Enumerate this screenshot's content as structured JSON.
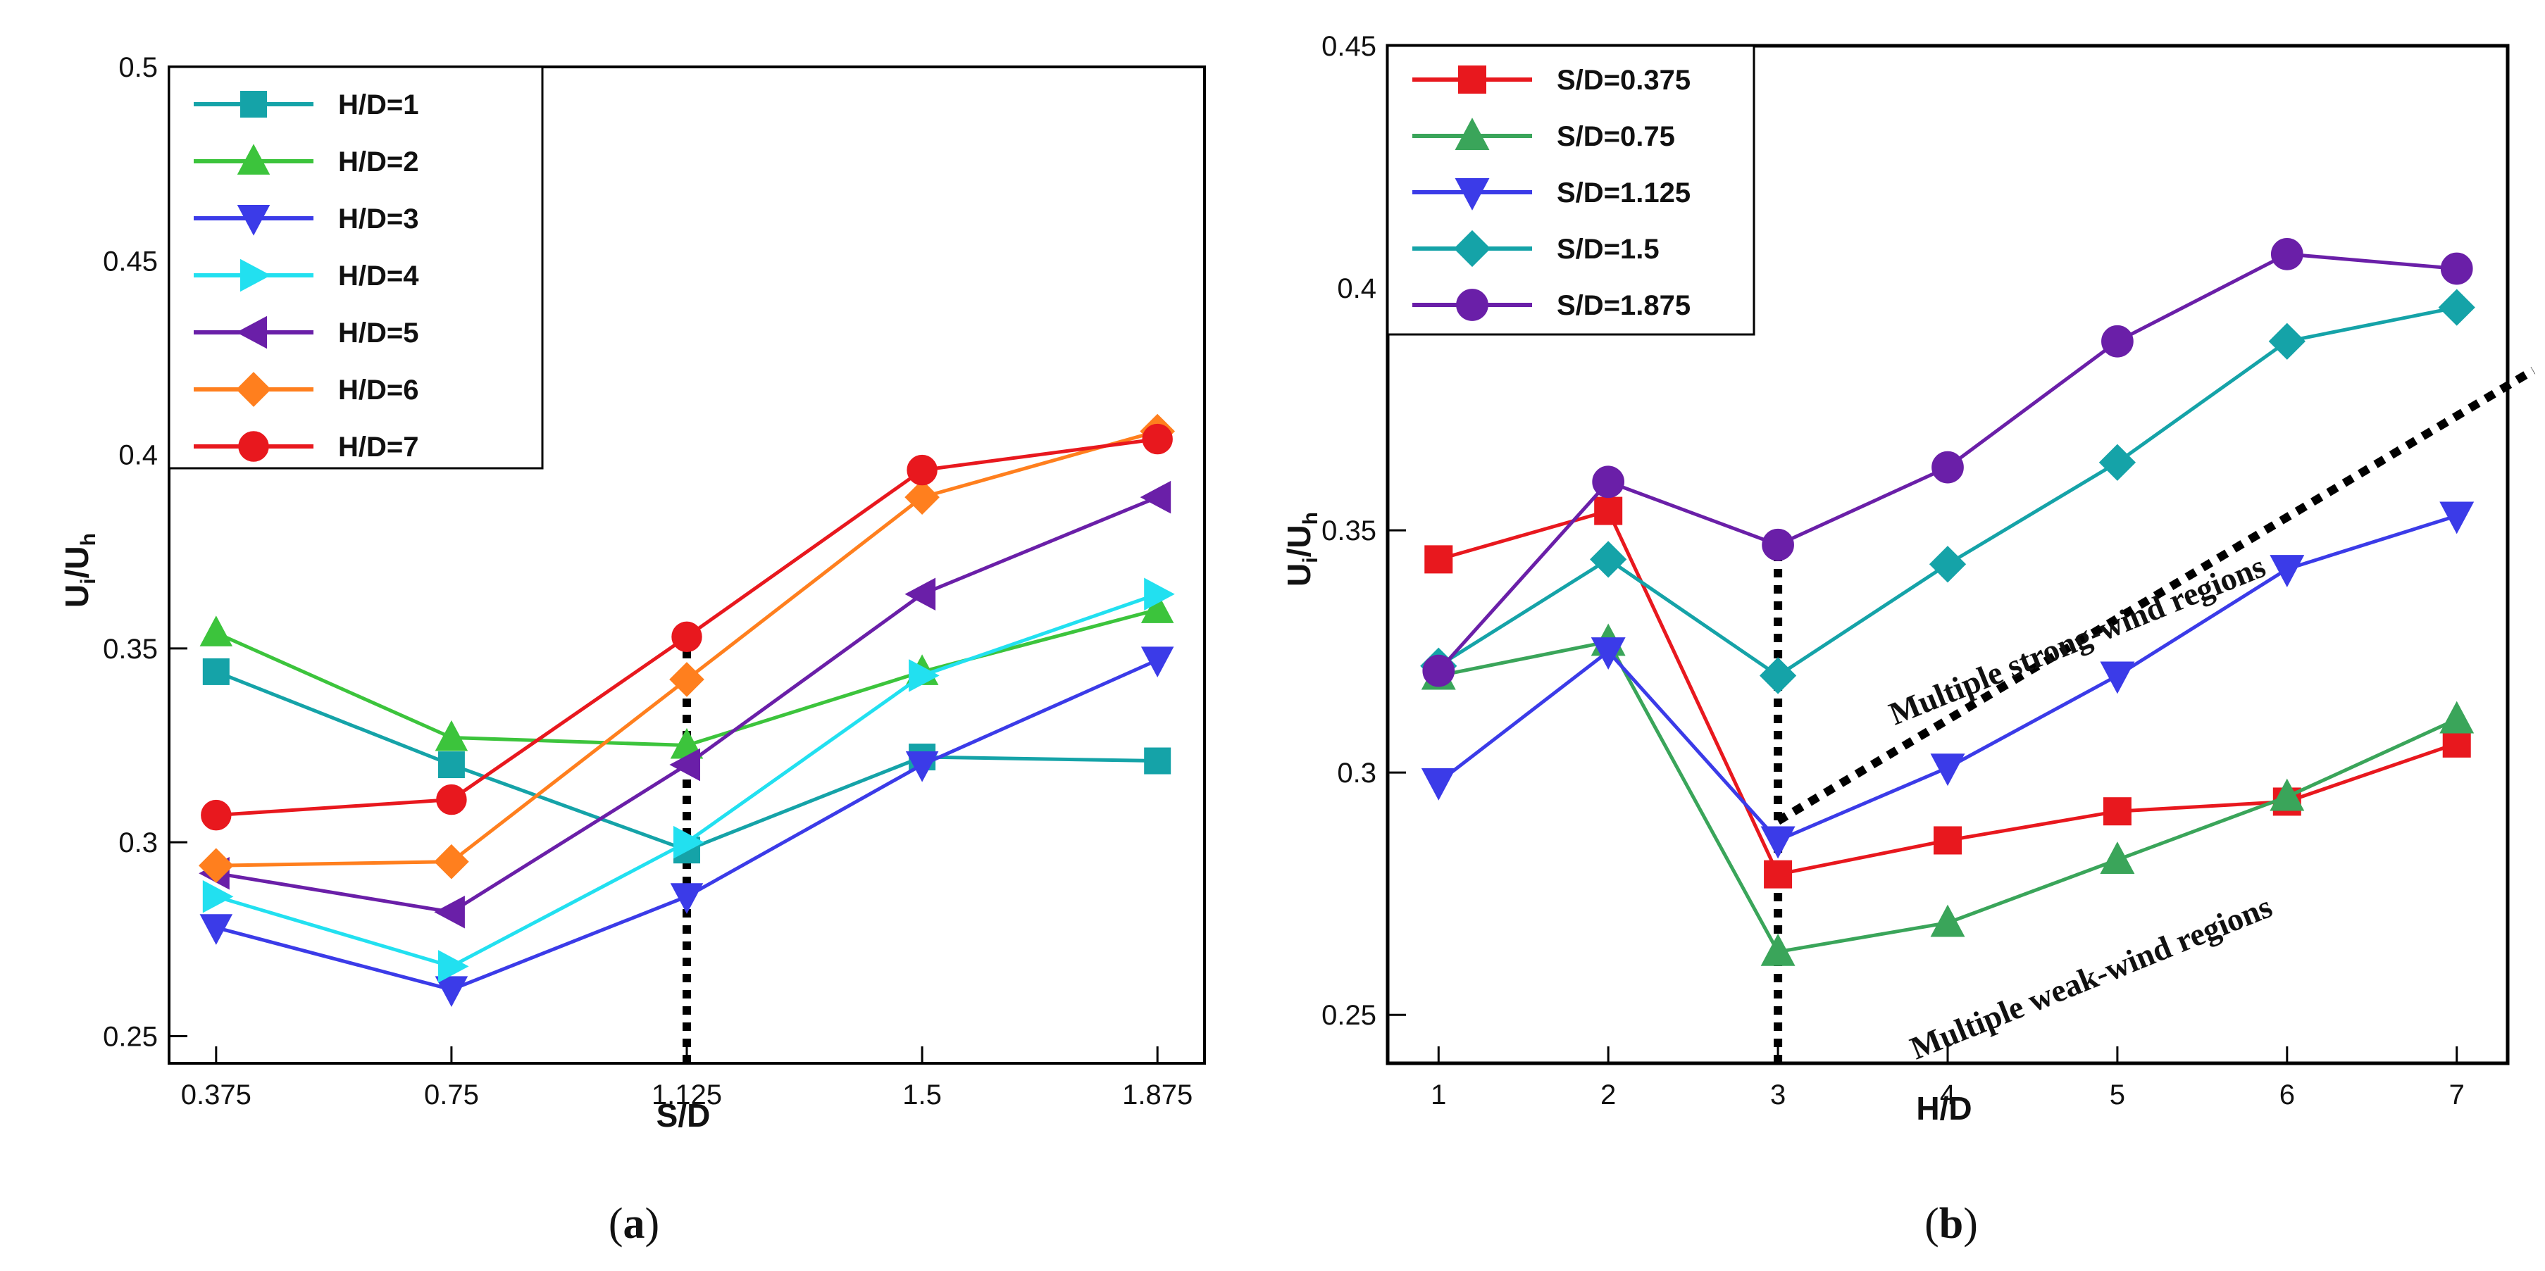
{
  "figure_captions": [
    {
      "open": "(",
      "letter": "a",
      "close": ")"
    },
    {
      "open": "(",
      "letter": "b",
      "close": ")"
    }
  ],
  "chart_data": [
    {
      "id": "a",
      "type": "line",
      "xlabel": "S/D",
      "ylabel_main": "U",
      "ylabel_sub1": "i",
      "ylabel_mid": "/U",
      "ylabel_sub2": "h",
      "categories": [
        "0.375",
        "0.75",
        "1.125",
        "1.5",
        "1.875"
      ],
      "xlim": [
        0.3,
        1.95
      ],
      "ylim": [
        0.243,
        0.5
      ],
      "yticks": [
        0.25,
        0.3,
        0.35,
        0.4,
        0.45,
        0.5
      ],
      "ytick_labels": [
        "0.25",
        "0.3",
        "0.35",
        "0.4",
        "0.45",
        "0.5"
      ],
      "legend_position": "top-left",
      "series": [
        {
          "name": "H/D=1",
          "color": "#15a3a8",
          "marker": "square",
          "values": [
            0.344,
            0.32,
            0.298,
            0.322,
            0.321
          ]
        },
        {
          "name": "H/D=2",
          "color": "#3cc43c",
          "marker": "triangle-up",
          "values": [
            0.354,
            0.327,
            0.325,
            0.344,
            0.36
          ]
        },
        {
          "name": "H/D=3",
          "color": "#3b3be8",
          "marker": "triangle-down",
          "values": [
            0.278,
            0.262,
            0.286,
            0.32,
            0.347
          ]
        },
        {
          "name": "H/D=4",
          "color": "#22e0f0",
          "marker": "triangle-right",
          "values": [
            0.286,
            0.268,
            0.3,
            0.343,
            0.364
          ]
        },
        {
          "name": "H/D=5",
          "color": "#6a1fa8",
          "marker": "triangle-left",
          "values": [
            0.292,
            0.282,
            0.32,
            0.364,
            0.389
          ]
        },
        {
          "name": "H/D=6",
          "color": "#ff7f1e",
          "marker": "diamond",
          "values": [
            0.294,
            0.295,
            0.342,
            0.389,
            0.406
          ]
        },
        {
          "name": "H/D=7",
          "color": "#e8181e",
          "marker": "circle",
          "values": [
            0.307,
            0.311,
            0.353,
            0.396,
            0.404
          ]
        }
      ],
      "reference_line": {
        "x": 1.125,
        "from": 0.243,
        "to": 0.353
      }
    },
    {
      "id": "b",
      "type": "line",
      "xlabel": "H/D",
      "ylabel_main": "U",
      "ylabel_sub1": "i",
      "ylabel_mid": "/U",
      "ylabel_sub2": "h",
      "categories": [
        "1",
        "2",
        "3",
        "4",
        "5",
        "6",
        "7"
      ],
      "xlim": [
        0.7,
        7.3
      ],
      "ylim": [
        0.24,
        0.45
      ],
      "yticks": [
        0.25,
        0.3,
        0.35,
        0.4,
        0.45
      ],
      "ytick_labels": [
        "0.25",
        "0.3",
        "0.35",
        "0.4",
        "0.45"
      ],
      "legend_position": "top-left",
      "series": [
        {
          "name": "S/D=0.375",
          "color": "#e8181e",
          "marker": "square",
          "values": [
            0.344,
            0.354,
            0.279,
            0.286,
            0.292,
            0.294,
            0.306
          ]
        },
        {
          "name": "S/D=0.75",
          "color": "#3aa55a",
          "marker": "triangle-up",
          "values": [
            0.32,
            0.327,
            0.263,
            0.269,
            0.282,
            0.295,
            0.311
          ]
        },
        {
          "name": "S/D=1.125",
          "color": "#3b3be8",
          "marker": "triangle-down",
          "values": [
            0.298,
            0.325,
            0.286,
            0.301,
            0.32,
            0.342,
            0.353
          ]
        },
        {
          "name": "S/D=1.5",
          "color": "#15a3a8",
          "marker": "diamond",
          "values": [
            0.322,
            0.344,
            0.32,
            0.343,
            0.364,
            0.389,
            0.396
          ]
        },
        {
          "name": "S/D=1.875",
          "color": "#6a1fa8",
          "marker": "circle",
          "values": [
            0.321,
            0.36,
            0.347,
            0.363,
            0.389,
            0.407,
            0.404
          ]
        }
      ],
      "reference_line": {
        "x": 3,
        "from": 0.24,
        "to": 0.347
      },
      "divider_line": {
        "x1": 3.0,
        "y1": 0.29,
        "x2": 7.45,
        "y2": 0.383
      },
      "annotations": [
        "Multiple strong-wind regions",
        "Multiple weak-wind regions"
      ]
    }
  ]
}
